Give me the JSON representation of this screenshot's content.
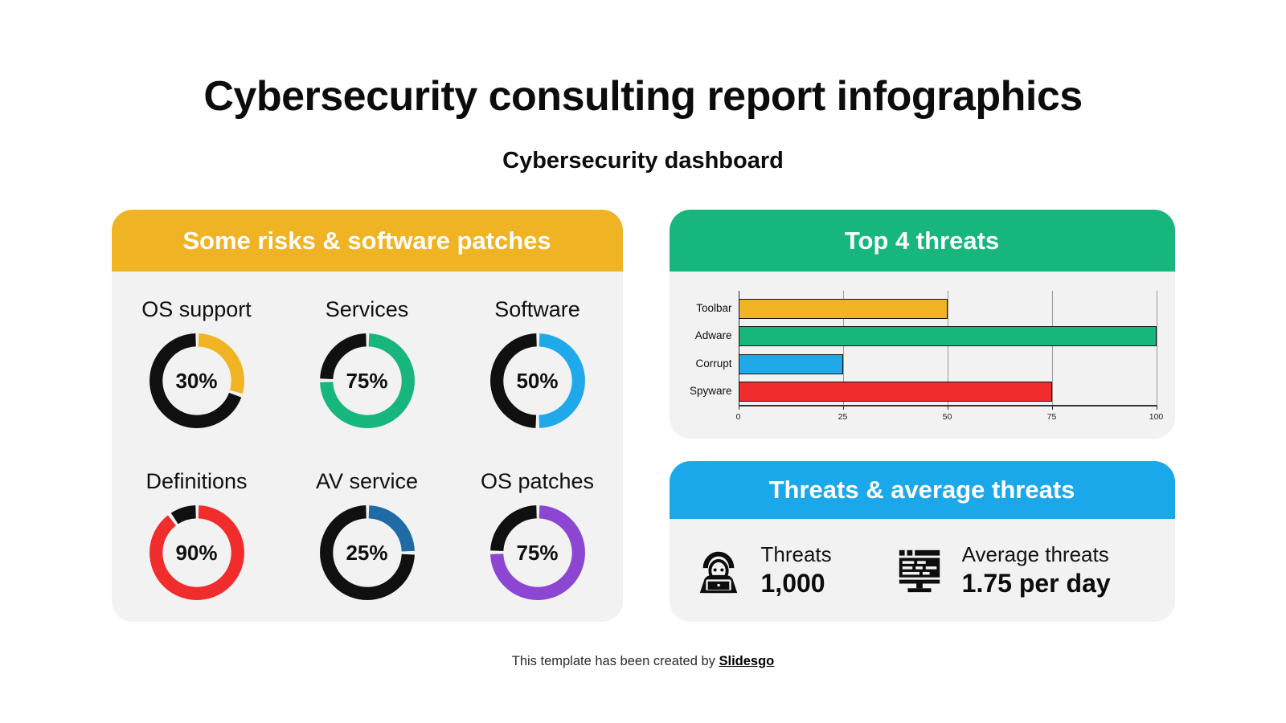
{
  "page": {
    "title": "Cybersecurity consulting report infographics",
    "subtitle": "Cybersecurity dashboard"
  },
  "palette": {
    "yellow": "#F0B324",
    "green": "#17B67C",
    "blue": "#1FA9EA",
    "red": "#F12C2C",
    "navy": "#1F6BA5",
    "purple": "#8C46D2",
    "ring_black": "#101010",
    "panel_bg": "#F2F2F2"
  },
  "risks_panel": {
    "header_color": "#F0B324"
  },
  "threats_panel": {
    "header_color": "#17B67C"
  },
  "stats_panel": {
    "title": "Threats & average threats",
    "header_color": "#1BA8EB",
    "stats": [
      {
        "icon": "hacker-icon",
        "label": "Threats",
        "value": "1,000"
      },
      {
        "icon": "monitor-code-icon",
        "label": "Average threats",
        "value": "1.75 per day"
      }
    ]
  },
  "footer": {
    "prefix": "This template has been created by ",
    "brand": "Slidesgo"
  },
  "chart_data": [
    {
      "type": "donut",
      "title": "Some risks & software patches",
      "value_format": "percent",
      "ring_background": "#101010",
      "items": [
        {
          "label": "OS support",
          "value": 30,
          "color": "#F0B324"
        },
        {
          "label": "Services",
          "value": 75,
          "color": "#17B67C"
        },
        {
          "label": "Software",
          "value": 50,
          "color": "#1FA9EA"
        },
        {
          "label": "Definitions",
          "value": 90,
          "color": "#F12C2C"
        },
        {
          "label": "AV service",
          "value": 25,
          "color": "#1F6BA5"
        },
        {
          "label": "OS patches",
          "value": 75,
          "color": "#8C46D2"
        }
      ]
    },
    {
      "type": "bar",
      "title": "Top 4 threats",
      "orientation": "horizontal",
      "categories": [
        "Toolbar",
        "Adware",
        "Corrupt",
        "Spyware"
      ],
      "values": [
        50,
        100,
        25,
        75
      ],
      "bar_colors": [
        "#F0B324",
        "#17B67C",
        "#1FA9EA",
        "#F12C2C"
      ],
      "xlim": [
        0,
        100
      ],
      "xticks": [
        0,
        25,
        50,
        75,
        100
      ],
      "grid": true,
      "xlabel": "",
      "ylabel": "",
      "legend": false
    }
  ]
}
